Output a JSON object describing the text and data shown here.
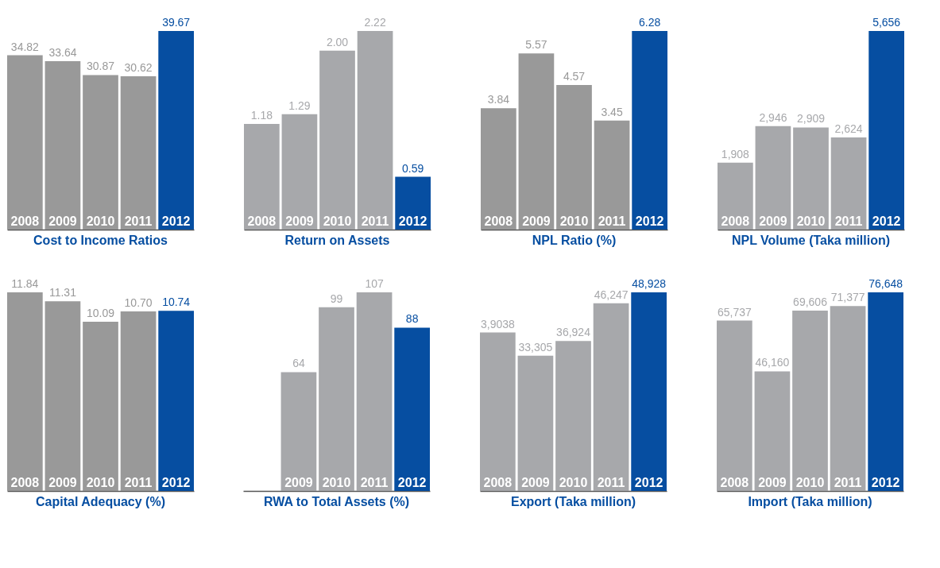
{
  "chart_data": [
    {
      "type": "bar",
      "title": "Cost to Income Ratios",
      "categories": [
        "2008",
        "2009",
        "2010",
        "2011",
        "2012"
      ],
      "values": [
        34.82,
        33.64,
        30.87,
        30.62,
        39.67
      ],
      "value_labels": [
        "34.82",
        "33.64",
        "30.87",
        "30.62",
        "39.67"
      ],
      "colors": [
        "#999999",
        "#999999",
        "#999999",
        "#999999",
        "#064ea1"
      ]
    },
    {
      "type": "bar",
      "title": "Return on Assets",
      "categories": [
        "2008",
        "2009",
        "2010",
        "2011",
        "2012"
      ],
      "values": [
        1.18,
        1.29,
        2.0,
        2.22,
        0.59
      ],
      "value_labels": [
        "1.18",
        "1.29",
        "2.00",
        "2.22",
        "0.59"
      ],
      "colors": [
        "#a7a8ab",
        "#a7a8ab",
        "#a7a8ab",
        "#a7a8ab",
        "#064ea1"
      ]
    },
    {
      "type": "bar",
      "title": "NPL Ratio (%)",
      "categories": [
        "2008",
        "2009",
        "2010",
        "2011",
        "2012"
      ],
      "values": [
        3.84,
        5.57,
        4.57,
        3.45,
        6.28
      ],
      "value_labels": [
        "3.84",
        "5.57",
        "4.57",
        "3.45",
        "6.28"
      ],
      "colors": [
        "#999999",
        "#999999",
        "#999999",
        "#999999",
        "#064ea1"
      ]
    },
    {
      "type": "bar",
      "title": "NPL Volume (Taka million)",
      "categories": [
        "2008",
        "2009",
        "2010",
        "2011",
        "2012"
      ],
      "values": [
        1908,
        2946,
        2909,
        2624,
        5656
      ],
      "value_labels": [
        "1,908",
        "2,946",
        "2,909",
        "2,624",
        "5,656"
      ],
      "colors": [
        "#a7a8ab",
        "#a7a8ab",
        "#a7a8ab",
        "#a7a8ab",
        "#064ea1"
      ]
    },
    {
      "type": "bar",
      "title": "Capital Adequacy (%)",
      "categories": [
        "2008",
        "2009",
        "2010",
        "2011",
        "2012"
      ],
      "values": [
        11.84,
        11.31,
        10.09,
        10.7,
        10.74
      ],
      "value_labels": [
        "11.84",
        "11.31",
        "10.09",
        "10.70",
        "10.74"
      ],
      "colors": [
        "#999999",
        "#999999",
        "#999999",
        "#999999",
        "#064ea1"
      ]
    },
    {
      "type": "bar",
      "title": "RWA to Total Assets (%)",
      "categories": [
        null,
        "2009",
        "2010",
        "2011",
        "2012"
      ],
      "values": [
        null,
        64,
        99,
        107,
        88
      ],
      "value_labels": [
        null,
        "64",
        "99",
        "107",
        "88"
      ],
      "colors": [
        "#a7a8ab",
        "#a7a8ab",
        "#a7a8ab",
        "#a7a8ab",
        "#064ea1"
      ]
    },
    {
      "type": "bar",
      "title": "Export (Taka million)",
      "categories": [
        "2008",
        "2009",
        "2010",
        "2011",
        "2012"
      ],
      "values": [
        39038,
        33305,
        36924,
        46247,
        48928
      ],
      "value_labels": [
        "3,9038",
        "33,305",
        "36,924",
        "46,247",
        "48,928"
      ],
      "colors": [
        "#a7a8ab",
        "#a7a8ab",
        "#a7a8ab",
        "#a7a8ab",
        "#064ea1"
      ]
    },
    {
      "type": "bar",
      "title": "Import (Taka million)",
      "categories": [
        "2008",
        "2009",
        "2010",
        "2011",
        "2012"
      ],
      "values": [
        65737,
        46160,
        69606,
        71377,
        76648
      ],
      "value_labels": [
        "65,737",
        "46,160",
        "69,606",
        "71,377",
        "76,648"
      ],
      "colors": [
        "#a7a8ab",
        "#a7a8ab",
        "#a7a8ab",
        "#a7a8ab",
        "#064ea1"
      ]
    }
  ]
}
